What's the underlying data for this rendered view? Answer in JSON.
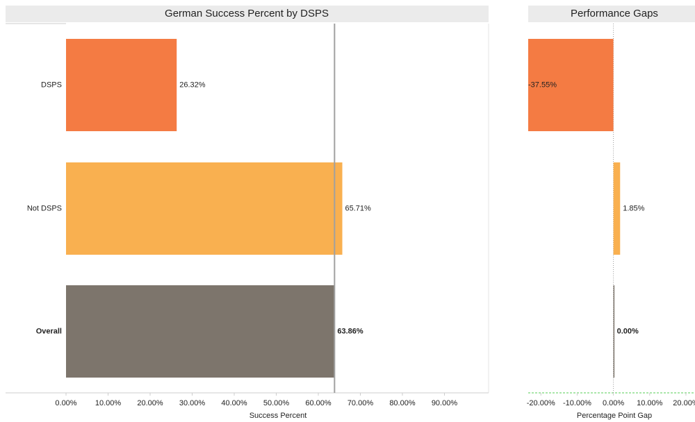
{
  "chart_data": [
    {
      "type": "bar",
      "orientation": "horizontal",
      "title": "German Success Percent by DSPS",
      "categories": [
        "DSPS",
        "Not DSPS",
        "Overall"
      ],
      "values": [
        26.32,
        65.71,
        63.86
      ],
      "value_labels": [
        "26.32%",
        "65.71%",
        "63.86%"
      ],
      "colors": [
        "#f47b43",
        "#f9b050",
        "#7d756c"
      ],
      "xlabel": "Success Percent",
      "xlim": [
        0,
        100.5
      ],
      "xticks": [
        {
          "value": 0,
          "label": "0.00%"
        },
        {
          "value": 10,
          "label": "10.00%"
        },
        {
          "value": 20,
          "label": "20.00%"
        },
        {
          "value": 30,
          "label": "30.00%"
        },
        {
          "value": 40,
          "label": "40.00%"
        },
        {
          "value": 50,
          "label": "50.00%"
        },
        {
          "value": 60,
          "label": "60.00%"
        },
        {
          "value": 70,
          "label": "70.00%"
        },
        {
          "value": 80,
          "label": "80.00%"
        },
        {
          "value": 90,
          "label": "90.00%"
        }
      ]
    },
    {
      "type": "bar",
      "orientation": "horizontal",
      "title": "Performance Gaps",
      "values": [
        -37.55,
        1.85,
        0.0
      ],
      "value_labels": [
        "-37.55%",
        "1.85%",
        "0.00%"
      ],
      "colors": [
        "#f47b43",
        "#f9b050",
        "#7d756c"
      ],
      "xlabel": "Percentage Point Gap",
      "xlim": [
        -23.5,
        22.5
      ],
      "xticks": [
        {
          "value": -20,
          "label": "-20.00%"
        },
        {
          "value": -10,
          "label": "-10.00%"
        },
        {
          "value": 0,
          "label": "0.00%"
        },
        {
          "value": 10,
          "label": "10.00%"
        },
        {
          "value": 20,
          "label": "20.00%"
        }
      ]
    }
  ]
}
